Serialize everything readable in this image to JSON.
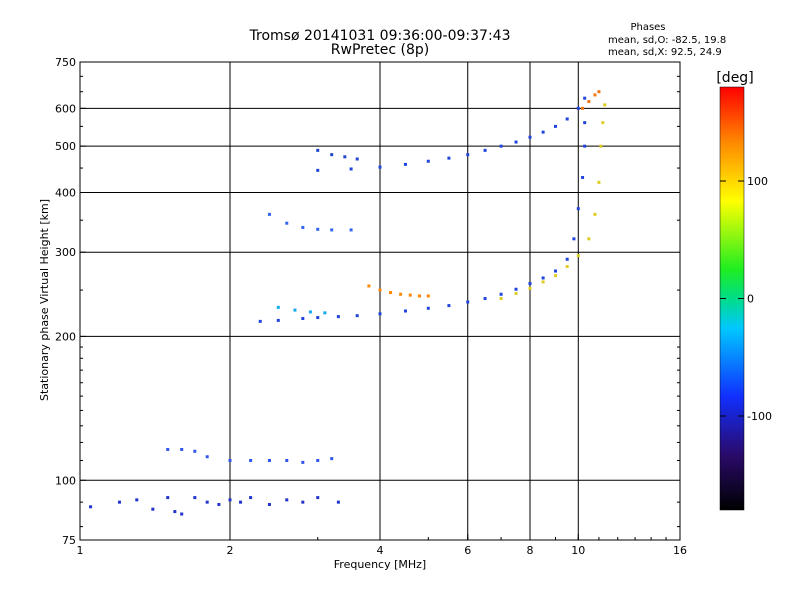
{
  "chart_data": {
    "type": "scatter",
    "title": "Tromsø 20141031 09:36:00-09:37:43",
    "subtitle": "RwPretec (8p)",
    "legend_title": "Phases",
    "legend_lines": [
      "mean, sd,O: -82.5, 19.8",
      "mean, sd,X:  92.5, 24.9"
    ],
    "xlabel": "Frequency [MHz]",
    "ylabel": "Stationary phase Virtual Height [km]",
    "xscale": "log",
    "yscale": "log",
    "xlim": [
      1,
      16
    ],
    "ylim": [
      75,
      750
    ],
    "xticks": [
      1,
      2,
      4,
      6,
      8,
      10,
      16
    ],
    "xtick_labels": [
      "1",
      "2",
      "4",
      "6",
      "8",
      "10",
      "16"
    ],
    "yticks": [
      75,
      100,
      200,
      300,
      400,
      500,
      600,
      750
    ],
    "ytick_labels": [
      "75",
      "100",
      "200",
      "300",
      "400",
      "500",
      "600",
      "750"
    ],
    "grid": true,
    "colorbar": {
      "label": "[deg]",
      "range": [
        -180,
        180
      ],
      "ticks": [
        100,
        0,
        -100
      ],
      "tick_labels": [
        "100",
        "0",
        "-100"
      ]
    },
    "series": [
      {
        "name": "",
        "color": "#2244dd",
        "phase": -90,
        "points": [
          [
            2.3,
            215
          ],
          [
            2.5,
            216
          ],
          [
            2.8,
            218
          ],
          [
            3.0,
            219
          ],
          [
            3.3,
            220
          ],
          [
            3.6,
            221
          ],
          [
            4.0,
            223
          ],
          [
            4.5,
            226
          ],
          [
            5.0,
            229
          ],
          [
            5.5,
            232
          ],
          [
            6.0,
            236
          ],
          [
            6.5,
            240
          ],
          [
            7.0,
            245
          ],
          [
            7.5,
            251
          ],
          [
            8.0,
            258
          ],
          [
            8.5,
            265
          ],
          [
            9.0,
            274
          ],
          [
            9.5,
            290
          ],
          [
            9.8,
            320
          ],
          [
            10.0,
            370
          ],
          [
            10.2,
            430
          ],
          [
            10.3,
            500
          ],
          [
            10.3,
            560
          ]
        ]
      },
      {
        "name": "",
        "color": "#2244dd",
        "phase": -85,
        "points": [
          [
            3.0,
            445
          ],
          [
            3.5,
            448
          ],
          [
            4.0,
            452
          ],
          [
            4.5,
            458
          ],
          [
            5.0,
            465
          ],
          [
            5.5,
            472
          ],
          [
            6.0,
            480
          ],
          [
            6.5,
            490
          ],
          [
            7.0,
            500
          ],
          [
            7.5,
            510
          ],
          [
            8.0,
            522
          ],
          [
            8.5,
            535
          ],
          [
            9.0,
            550
          ],
          [
            9.5,
            570
          ],
          [
            10.0,
            600
          ],
          [
            10.3,
            630
          ]
        ]
      },
      {
        "name": "",
        "color": "#3366ee",
        "phase": -95,
        "points": [
          [
            2.4,
            360
          ],
          [
            2.6,
            345
          ],
          [
            2.8,
            338
          ],
          [
            3.0,
            335
          ],
          [
            3.2,
            334
          ],
          [
            3.5,
            334
          ]
        ]
      },
      {
        "name": "",
        "color": "#2244cc",
        "phase": -100,
        "points": [
          [
            3.0,
            490
          ],
          [
            3.2,
            480
          ],
          [
            3.4,
            475
          ],
          [
            3.6,
            470
          ]
        ]
      },
      {
        "name": "",
        "color": "#3355ee",
        "phase": -105,
        "points": [
          [
            1.5,
            116
          ],
          [
            1.6,
            116
          ],
          [
            1.7,
            115
          ],
          [
            1.8,
            112
          ],
          [
            2.0,
            110
          ],
          [
            2.2,
            110
          ],
          [
            2.4,
            110
          ],
          [
            2.6,
            110
          ],
          [
            2.8,
            109
          ],
          [
            3.0,
            110
          ],
          [
            3.2,
            111
          ]
        ]
      },
      {
        "name": "",
        "color": "#2233cc",
        "phase": -110,
        "points": [
          [
            1.05,
            88
          ],
          [
            1.2,
            90
          ],
          [
            1.3,
            91
          ],
          [
            1.4,
            87
          ],
          [
            1.5,
            92
          ],
          [
            1.55,
            86
          ],
          [
            1.6,
            85
          ],
          [
            1.7,
            92
          ],
          [
            1.8,
            90
          ],
          [
            1.9,
            89
          ],
          [
            2.0,
            91
          ],
          [
            2.1,
            90
          ],
          [
            2.2,
            92
          ],
          [
            2.4,
            89
          ],
          [
            2.6,
            91
          ],
          [
            2.8,
            90
          ],
          [
            3.0,
            92
          ],
          [
            3.3,
            90
          ]
        ]
      },
      {
        "name": "",
        "color": "#ff8800",
        "phase": 150,
        "points": [
          [
            3.8,
            255
          ],
          [
            4.0,
            250
          ],
          [
            4.2,
            247
          ],
          [
            4.4,
            245
          ],
          [
            4.6,
            244
          ],
          [
            4.8,
            243
          ],
          [
            5.0,
            243
          ]
        ]
      },
      {
        "name": "",
        "color": "#ddcc22",
        "phase": 110,
        "points": [
          [
            7.0,
            240
          ],
          [
            7.5,
            246
          ],
          [
            8.0,
            252
          ],
          [
            8.5,
            260
          ],
          [
            9.0,
            268
          ],
          [
            9.5,
            280
          ],
          [
            10.0,
            295
          ],
          [
            10.5,
            320
          ],
          [
            10.8,
            360
          ],
          [
            11.0,
            420
          ],
          [
            11.1,
            500
          ],
          [
            11.2,
            560
          ],
          [
            11.3,
            610
          ]
        ]
      },
      {
        "name": "",
        "color": "#ee7711",
        "phase": 140,
        "points": [
          [
            10.2,
            600
          ],
          [
            10.5,
            620
          ],
          [
            10.8,
            640
          ],
          [
            11.0,
            650
          ]
        ]
      },
      {
        "name": "",
        "color": "#11aaee",
        "phase": -40,
        "points": [
          [
            2.5,
            230
          ],
          [
            2.7,
            227
          ],
          [
            2.9,
            225
          ],
          [
            3.1,
            224
          ]
        ]
      }
    ]
  }
}
